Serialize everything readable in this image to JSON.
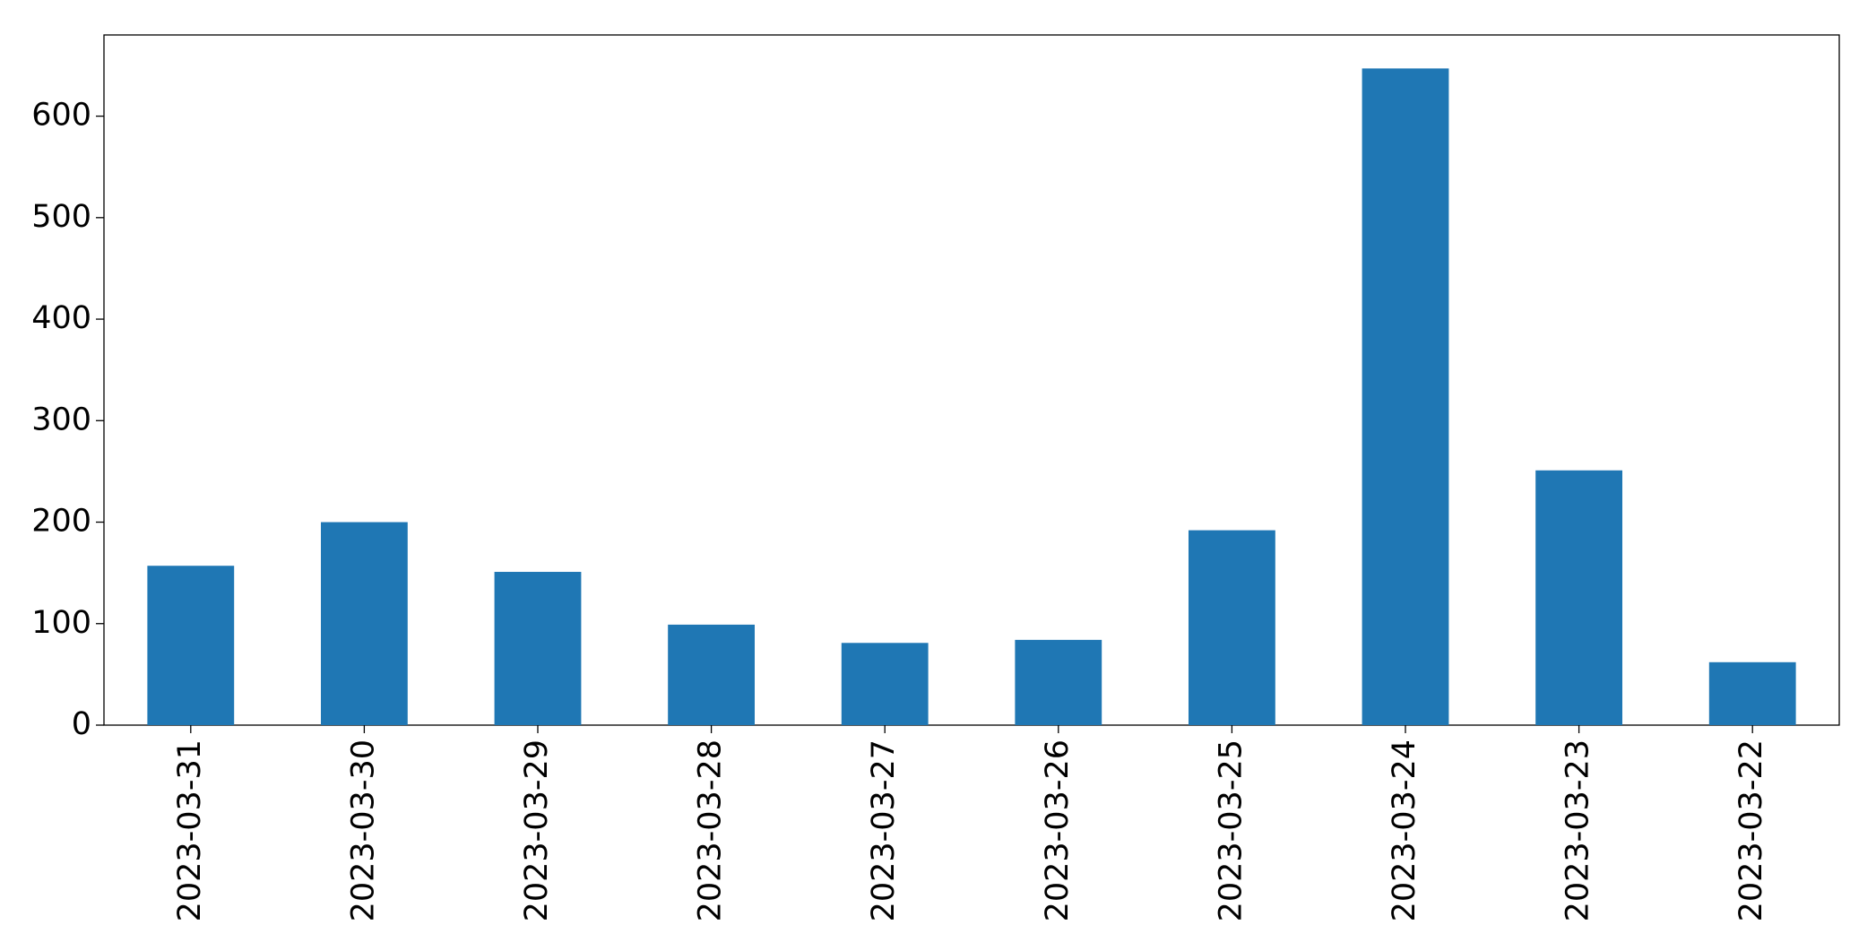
{
  "chart_data": {
    "type": "bar",
    "categories": [
      "2023-03-31",
      "2023-03-30",
      "2023-03-29",
      "2023-03-28",
      "2023-03-27",
      "2023-03-26",
      "2023-03-25",
      "2023-03-24",
      "2023-03-23",
      "2023-03-22"
    ],
    "values": [
      157,
      200,
      151,
      99,
      81,
      84,
      192,
      647,
      251,
      62
    ],
    "color": "#1f77b4",
    "ylim": [
      0,
      680
    ],
    "yticks": [
      0,
      100,
      200,
      300,
      400,
      500,
      600
    ],
    "grid": false
  }
}
